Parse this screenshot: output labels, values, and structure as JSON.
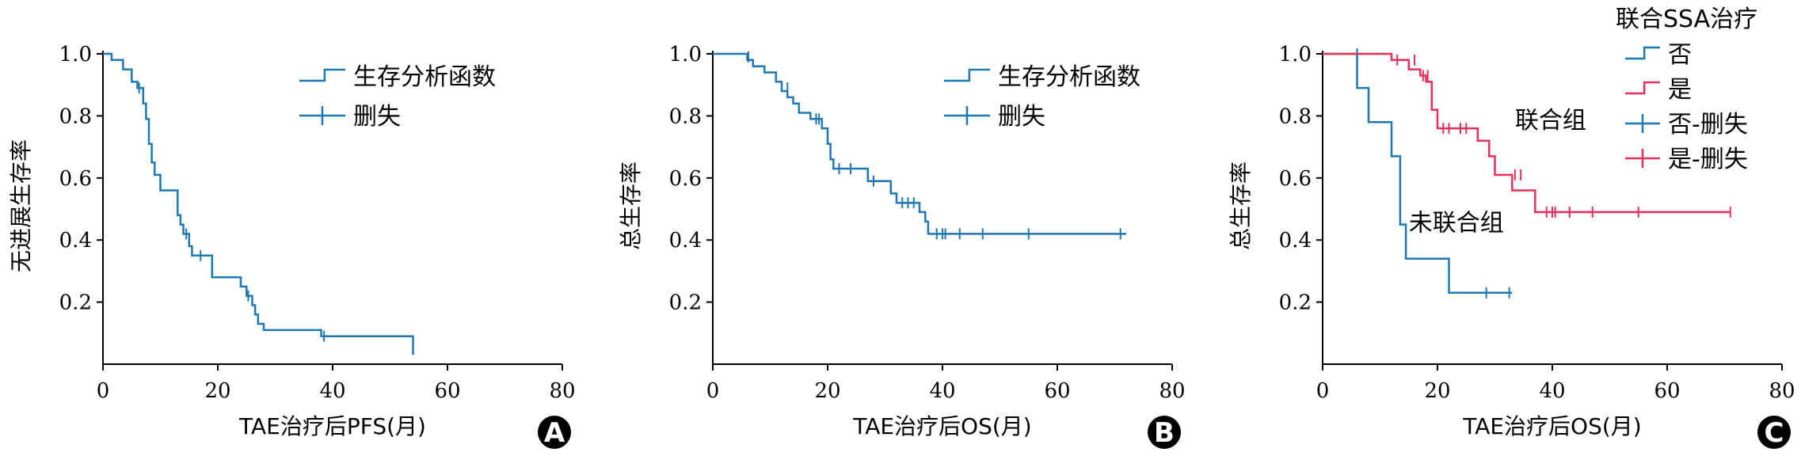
{
  "chart_data": [
    {
      "type": "line",
      "panel_label": "A",
      "xlabel": "TAE治疗后PFS(月)",
      "ylabel": "无进展生存率",
      "xlim": [
        0,
        80
      ],
      "ylim": [
        0,
        1.0
      ],
      "x_ticks": [
        0,
        20,
        40,
        60,
        80
      ],
      "y_ticks": [
        0.2,
        0.4,
        0.6,
        0.8,
        1.0
      ],
      "x_tick_labels": [
        "0",
        "20",
        "40",
        "60",
        "80"
      ],
      "y_tick_labels": [
        "0.2",
        "0.4",
        "0.6",
        "0.8",
        "1.0"
      ],
      "legend": {
        "position": "top-right",
        "entries": [
          {
            "label": "生存分析函数",
            "kind": "step"
          },
          {
            "label": "删失",
            "kind": "censor"
          }
        ]
      },
      "annotations": [],
      "series": [
        {
          "name": "生存分析函数",
          "color": "#1f77b4",
          "steps": [
            [
              0,
              1.0
            ],
            [
              1.5,
              1.0
            ],
            [
              1.5,
              0.98
            ],
            [
              3.5,
              0.98
            ],
            [
              3.5,
              0.95
            ],
            [
              5,
              0.95
            ],
            [
              5,
              0.91
            ],
            [
              6,
              0.91
            ],
            [
              6,
              0.89
            ],
            [
              7,
              0.89
            ],
            [
              7,
              0.84
            ],
            [
              7.5,
              0.84
            ],
            [
              7.5,
              0.79
            ],
            [
              8,
              0.79
            ],
            [
              8,
              0.71
            ],
            [
              8.5,
              0.71
            ],
            [
              8.5,
              0.65
            ],
            [
              9,
              0.65
            ],
            [
              9,
              0.61
            ],
            [
              10,
              0.61
            ],
            [
              10,
              0.56
            ],
            [
              13,
              0.56
            ],
            [
              13,
              0.48
            ],
            [
              13.5,
              0.48
            ],
            [
              13.5,
              0.45
            ],
            [
              14,
              0.45
            ],
            [
              14,
              0.42
            ],
            [
              15,
              0.42
            ],
            [
              15,
              0.38
            ],
            [
              15.5,
              0.38
            ],
            [
              15.5,
              0.35
            ],
            [
              19,
              0.35
            ],
            [
              19,
              0.28
            ],
            [
              24,
              0.28
            ],
            [
              24,
              0.25
            ],
            [
              25,
              0.25
            ],
            [
              25,
              0.22
            ],
            [
              26,
              0.22
            ],
            [
              26,
              0.19
            ],
            [
              26.5,
              0.19
            ],
            [
              26.5,
              0.16
            ],
            [
              27,
              0.16
            ],
            [
              27,
              0.13
            ],
            [
              28,
              0.13
            ],
            [
              28,
              0.11
            ],
            [
              38,
              0.11
            ],
            [
              38,
              0.09
            ],
            [
              54,
              0.09
            ],
            [
              54,
              0.03
            ]
          ],
          "censored": [
            [
              6.3,
              0.89
            ],
            [
              14.5,
              0.42
            ],
            [
              17,
              0.35
            ],
            [
              25.3,
              0.22
            ],
            [
              38.5,
              0.09
            ]
          ]
        }
      ]
    },
    {
      "type": "line",
      "panel_label": "B",
      "xlabel": "TAE治疗后OS(月)",
      "ylabel": "总生存率",
      "xlim": [
        0,
        80
      ],
      "ylim": [
        0,
        1.0
      ],
      "x_ticks": [
        0,
        20,
        40,
        60,
        80
      ],
      "y_ticks": [
        0.2,
        0.4,
        0.6,
        0.8,
        1.0
      ],
      "x_tick_labels": [
        "0",
        "20",
        "40",
        "60",
        "80"
      ],
      "y_tick_labels": [
        "0.2",
        "0.4",
        "0.6",
        "0.8",
        "1.0"
      ],
      "legend": {
        "position": "top-right",
        "entries": [
          {
            "label": "生存分析函数",
            "kind": "step"
          },
          {
            "label": "删失",
            "kind": "censor"
          }
        ]
      },
      "annotations": [],
      "series": [
        {
          "name": "生存分析函数",
          "color": "#1f77b4",
          "steps": [
            [
              0,
              1.0
            ],
            [
              6,
              1.0
            ],
            [
              6,
              0.98
            ],
            [
              7,
              0.98
            ],
            [
              7,
              0.96
            ],
            [
              9,
              0.96
            ],
            [
              9,
              0.94
            ],
            [
              11,
              0.94
            ],
            [
              11,
              0.91
            ],
            [
              12,
              0.91
            ],
            [
              12,
              0.88
            ],
            [
              13,
              0.88
            ],
            [
              13,
              0.86
            ],
            [
              14,
              0.86
            ],
            [
              14,
              0.84
            ],
            [
              15,
              0.84
            ],
            [
              15,
              0.81
            ],
            [
              17,
              0.81
            ],
            [
              17,
              0.79
            ],
            [
              19,
              0.79
            ],
            [
              19,
              0.76
            ],
            [
              20,
              0.76
            ],
            [
              20,
              0.71
            ],
            [
              20.5,
              0.71
            ],
            [
              20.5,
              0.66
            ],
            [
              21,
              0.66
            ],
            [
              21,
              0.63
            ],
            [
              23,
              0.63
            ],
            [
              23,
              0.63
            ],
            [
              27,
              0.63
            ],
            [
              27,
              0.59
            ],
            [
              31,
              0.59
            ],
            [
              31,
              0.55
            ],
            [
              32,
              0.55
            ],
            [
              32,
              0.52
            ],
            [
              36,
              0.52
            ],
            [
              36,
              0.49
            ],
            [
              37,
              0.49
            ],
            [
              37,
              0.46
            ],
            [
              37.5,
              0.46
            ],
            [
              37.5,
              0.42
            ],
            [
              72,
              0.42
            ]
          ],
          "censored": [
            [
              6.2,
              0.99
            ],
            [
              13,
              0.89
            ],
            [
              18,
              0.79
            ],
            [
              18.5,
              0.79
            ],
            [
              22,
              0.63
            ],
            [
              24,
              0.63
            ],
            [
              28,
              0.59
            ],
            [
              33,
              0.52
            ],
            [
              34,
              0.52
            ],
            [
              35,
              0.52
            ],
            [
              39,
              0.42
            ],
            [
              40,
              0.42
            ],
            [
              40.5,
              0.42
            ],
            [
              43,
              0.42
            ],
            [
              47,
              0.42
            ],
            [
              55,
              0.42
            ],
            [
              71,
              0.42
            ]
          ]
        }
      ]
    },
    {
      "type": "line",
      "panel_label": "C",
      "xlabel": "TAE治疗后OS(月)",
      "ylabel": "总生存率",
      "xlim": [
        0,
        80
      ],
      "ylim": [
        0,
        1.0
      ],
      "x_ticks": [
        0,
        20,
        40,
        60,
        80
      ],
      "y_ticks": [
        0.2,
        0.4,
        0.6,
        0.8,
        1.0
      ],
      "x_tick_labels": [
        "0",
        "20",
        "40",
        "60",
        "80"
      ],
      "y_tick_labels": [
        "0.2",
        "0.4",
        "0.6",
        "0.8",
        "1.0"
      ],
      "legend": {
        "position": "top-right",
        "title": "联合SSA治疗",
        "entries": [
          {
            "label": "否",
            "kind": "step",
            "color": "#1f77b4"
          },
          {
            "label": "是",
            "kind": "step",
            "color": "#e8305a"
          },
          {
            "label": "否-删失",
            "kind": "censor",
            "color": "#1f77b4"
          },
          {
            "label": "是-删失",
            "kind": "censor",
            "color": "#e8305a"
          }
        ]
      },
      "annotations": [
        {
          "text": "联合组",
          "x": 33.5,
          "y": 0.76
        },
        {
          "text": "未联合组",
          "x": 15,
          "y": 0.43
        }
      ],
      "series": [
        {
          "name": "否",
          "color": "#1f77b4",
          "steps": [
            [
              0,
              1.0
            ],
            [
              6,
              1.0
            ],
            [
              6,
              0.89
            ],
            [
              8,
              0.89
            ],
            [
              8,
              0.78
            ],
            [
              12,
              0.78
            ],
            [
              12,
              0.67
            ],
            [
              13.5,
              0.67
            ],
            [
              13.5,
              0.45
            ],
            [
              14.5,
              0.45
            ],
            [
              14.5,
              0.34
            ],
            [
              22,
              0.34
            ],
            [
              22,
              0.23
            ],
            [
              33,
              0.23
            ]
          ],
          "censored": [
            [
              6,
              1.0
            ],
            [
              28.5,
              0.23
            ],
            [
              32.5,
              0.23
            ]
          ]
        },
        {
          "name": "是",
          "color": "#e8305a",
          "steps": [
            [
              0,
              1.0
            ],
            [
              12,
              1.0
            ],
            [
              12,
              0.98
            ],
            [
              15,
              0.98
            ],
            [
              15,
              0.95
            ],
            [
              17,
              0.95
            ],
            [
              17,
              0.93
            ],
            [
              18,
              0.93
            ],
            [
              18,
              0.91
            ],
            [
              19,
              0.91
            ],
            [
              19,
              0.82
            ],
            [
              20,
              0.82
            ],
            [
              20,
              0.76
            ],
            [
              27,
              0.76
            ],
            [
              27,
              0.72
            ],
            [
              29,
              0.72
            ],
            [
              29,
              0.67
            ],
            [
              30,
              0.67
            ],
            [
              30,
              0.61
            ],
            [
              33,
              0.61
            ],
            [
              33,
              0.56
            ],
            [
              37,
              0.56
            ],
            [
              37,
              0.49
            ],
            [
              71,
              0.49
            ]
          ],
          "censored": [
            [
              13,
              0.98
            ],
            [
              16,
              0.98
            ],
            [
              17.5,
              0.93
            ],
            [
              18.3,
              0.93
            ],
            [
              21,
              0.76
            ],
            [
              22,
              0.76
            ],
            [
              24,
              0.76
            ],
            [
              25,
              0.76
            ],
            [
              33.5,
              0.61
            ],
            [
              34.5,
              0.61
            ],
            [
              39,
              0.49
            ],
            [
              40,
              0.49
            ],
            [
              40.5,
              0.49
            ],
            [
              43,
              0.49
            ],
            [
              47,
              0.49
            ],
            [
              55,
              0.49
            ],
            [
              71,
              0.49
            ]
          ]
        }
      ]
    }
  ]
}
